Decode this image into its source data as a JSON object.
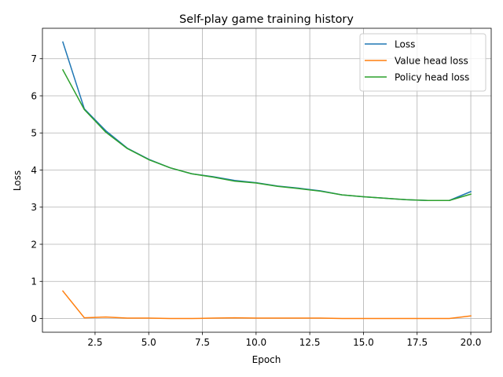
{
  "chart_data": {
    "type": "line",
    "title": "Self-play game training history",
    "xlabel": "Epoch",
    "ylabel": "Loss",
    "xlim": [
      0.05,
      20.95
    ],
    "ylim": [
      -0.37,
      7.82
    ],
    "xticks": [
      2.5,
      5.0,
      7.5,
      10.0,
      12.5,
      15.0,
      17.5,
      20.0
    ],
    "xtick_labels": [
      "2.5",
      "5.0",
      "7.5",
      "10.0",
      "12.5",
      "15.0",
      "17.5",
      "20.0"
    ],
    "yticks": [
      0,
      1,
      2,
      3,
      4,
      5,
      6,
      7
    ],
    "ytick_labels": [
      "0",
      "1",
      "2",
      "3",
      "4",
      "5",
      "6",
      "7"
    ],
    "grid": true,
    "legend_position": "top-right",
    "x": [
      1,
      2,
      3,
      4,
      5,
      6,
      7,
      8,
      9,
      10,
      11,
      12,
      13,
      14,
      15,
      16,
      17,
      18,
      19,
      20
    ],
    "series": [
      {
        "name": "Loss",
        "color": "#1f77b4",
        "values": [
          7.45,
          5.65,
          5.06,
          4.59,
          4.29,
          4.06,
          3.9,
          3.82,
          3.72,
          3.66,
          3.57,
          3.51,
          3.44,
          3.33,
          3.28,
          3.24,
          3.2,
          3.18,
          3.18,
          3.42
        ]
      },
      {
        "name": "Value head loss",
        "color": "#ff7f0e",
        "values": [
          0.74,
          0.02,
          0.04,
          0.01,
          0.01,
          0.0,
          0.0,
          0.01,
          0.02,
          0.01,
          0.01,
          0.01,
          0.01,
          0.0,
          0.0,
          0.0,
          0.0,
          0.0,
          0.0,
          0.07
        ]
      },
      {
        "name": "Policy head loss",
        "color": "#2ca02c",
        "values": [
          6.7,
          5.63,
          5.02,
          4.58,
          4.28,
          4.06,
          3.9,
          3.81,
          3.7,
          3.65,
          3.56,
          3.5,
          3.43,
          3.33,
          3.28,
          3.24,
          3.2,
          3.18,
          3.18,
          3.35
        ]
      }
    ]
  }
}
